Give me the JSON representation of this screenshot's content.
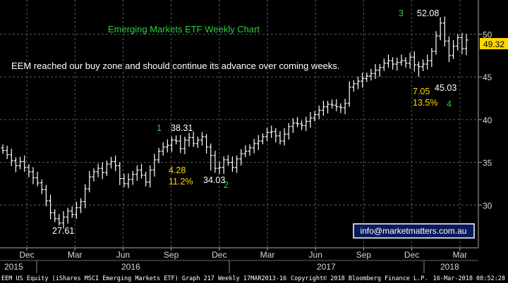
{
  "chart_data": {
    "type": "ohlc",
    "title": "Emerging Markets ETF Weekly Chart",
    "note": "EEM reached our buy zone and should continue its advance over coming weeks.",
    "last_price": "49.32",
    "contact": "info@marketmatters.com.au",
    "footer_left": "EEM US Equity (iShares MSCI Emerging Markets ETF) Graph 217  Weekly 17MAR2013-16",
    "footer_mid": "Copyright© 2018 Bloomberg Finance L.P.",
    "footer_right": "16-Mar-2018 08:52:28",
    "ylim": [
      25,
      54
    ],
    "yticks": [
      {
        "label": "30",
        "value": 30
      },
      {
        "label": "35",
        "value": 35
      },
      {
        "label": "40",
        "value": 40
      },
      {
        "label": "45",
        "value": 45
      },
      {
        "label": "50",
        "value": 50
      }
    ],
    "xticks": [
      "Dec",
      "Mar",
      "Jun",
      "Sep",
      "Dec",
      "Mar",
      "Jun",
      "Sep",
      "Dec",
      "Mar"
    ],
    "years": [
      "2015",
      "2016",
      "2017",
      "2018"
    ],
    "annotations": {
      "low_2761": "27.61",
      "high_3831": "38.31",
      "low_3403": "34.03",
      "high_5208": "52.08",
      "low_4503": "45.03",
      "wave_1": "1",
      "wave_2": "2",
      "wave_3": "3",
      "wave_4": "4",
      "drop1_pts": "4.28",
      "drop1_pct": "11.2%",
      "drop2_pts": "7.05",
      "drop2_pct": "13.5%"
    },
    "series": [
      {
        "name": "EEM",
        "close": [
          36.4,
          35.9,
          35.2,
          34.6,
          35.1,
          34.4,
          33.9,
          33.2,
          32.6,
          31.8,
          30.5,
          29.1,
          28.4,
          27.9,
          28.6,
          29.3,
          28.9,
          29.7,
          30.4,
          31.9,
          33.3,
          33.9,
          34.3,
          33.8,
          34.8,
          35.1,
          34.6,
          33.1,
          32.5,
          33.0,
          33.6,
          34.1,
          33.5,
          32.7,
          34.1,
          35.3,
          36.3,
          36.8,
          37.0,
          37.6,
          37.5,
          36.6,
          37.6,
          37.9,
          37.2,
          37.6,
          38.0,
          36.8,
          35.8,
          34.3,
          34.4,
          35.3,
          35.0,
          34.4,
          35.4,
          36.0,
          36.3,
          36.7,
          37.2,
          37.5,
          38.0,
          38.5,
          38.6,
          38.1,
          37.5,
          38.3,
          39.2,
          39.6,
          39.5,
          39.3,
          39.8,
          40.2,
          40.6,
          41.1,
          41.5,
          41.8,
          41.7,
          41.5,
          41.4,
          41.9,
          43.8,
          44.2,
          44.5,
          44.8,
          45.1,
          45.4,
          45.8,
          46.1,
          46.6,
          46.9,
          46.5,
          46.7,
          46.9,
          46.6,
          47.3,
          46.4,
          46.2,
          46.5,
          46.9,
          48.0,
          49.8,
          51.3,
          49.2,
          47.5,
          48.6,
          49.6,
          48.3,
          49.32
        ]
      }
    ]
  }
}
